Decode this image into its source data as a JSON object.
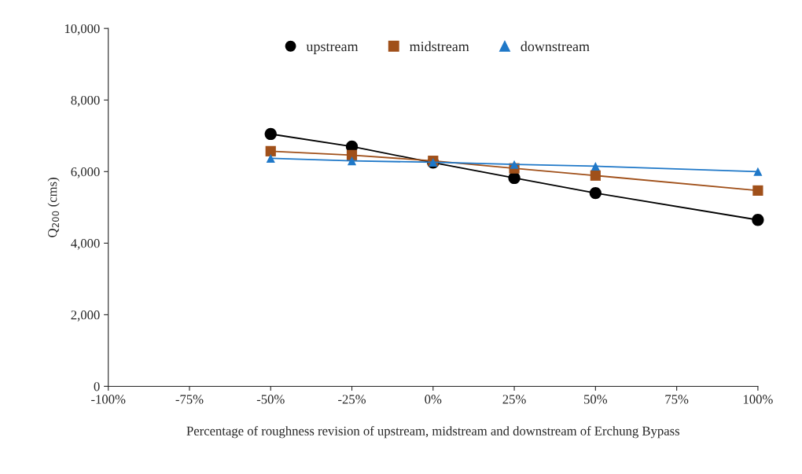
{
  "chart_data": {
    "type": "line",
    "xlabel": "Percentage of roughness revision of upstream, midstream and downstream of Erchung Bypass",
    "ylabel": "Q$_{200}$ (cms)",
    "x": [
      -50,
      -25,
      0,
      25,
      50,
      100
    ],
    "series": [
      {
        "name": "upstream",
        "color": "#000000",
        "marker": "circle",
        "values": [
          7050,
          6700,
          6250,
          5820,
          5400,
          4650
        ]
      },
      {
        "name": "midstream",
        "color": "#a0501a",
        "marker": "square",
        "values": [
          6570,
          6460,
          6300,
          6090,
          5890,
          5470
        ]
      },
      {
        "name": "downstream",
        "color": "#1f78c8",
        "marker": "triangle",
        "values": [
          6370,
          6300,
          6260,
          6200,
          6150,
          6000
        ]
      }
    ],
    "xlim": [
      -100,
      100
    ],
    "xticks": [
      {
        "value": -100,
        "label": "-100%"
      },
      {
        "value": -75,
        "label": "-75%"
      },
      {
        "value": -50,
        "label": "-50%"
      },
      {
        "value": -25,
        "label": "-25%"
      },
      {
        "value": 0,
        "label": "0%"
      },
      {
        "value": 25,
        "label": "25%"
      },
      {
        "value": 50,
        "label": "50%"
      },
      {
        "value": 75,
        "label": "75%"
      },
      {
        "value": 100,
        "label": "100%"
      }
    ],
    "ylim": [
      0,
      10000
    ],
    "yticks": [
      0,
      {
        "value": 2000,
        "label": "2,000"
      },
      {
        "value": 4000,
        "label": "4,000"
      },
      {
        "value": 6000,
        "label": "6,000"
      },
      {
        "value": 8000,
        "label": "8,000"
      },
      {
        "value": 10000,
        "label": "10,000"
      }
    ],
    "grid": false,
    "legend": "top"
  }
}
